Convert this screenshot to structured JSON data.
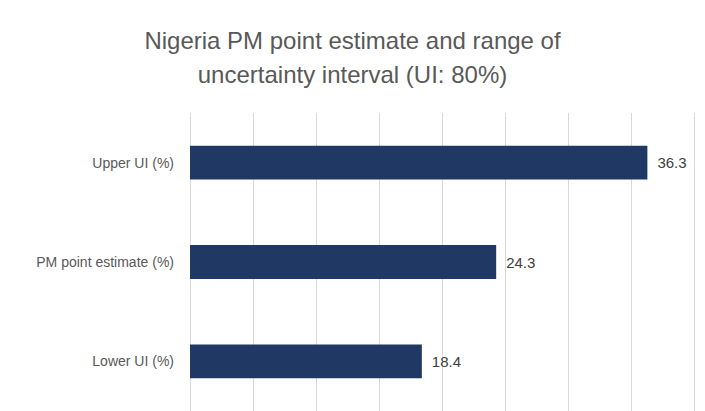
{
  "chart_data": {
    "type": "bar",
    "orientation": "horizontal",
    "title": "Nigeria PM point estimate and range of\nuncertainty interval (UI: 80%)",
    "categories": [
      "Upper UI (%)",
      "PM point estimate (%)",
      "Lower UI (%)"
    ],
    "values": [
      36.3,
      24.3,
      18.4
    ],
    "color": "#1f3864",
    "xlim": [
      0,
      40
    ],
    "xticks": [
      0,
      5,
      10,
      15,
      20,
      25,
      30,
      35,
      40
    ],
    "grid": true,
    "data_labels": true,
    "tick_labels": "y"
  }
}
